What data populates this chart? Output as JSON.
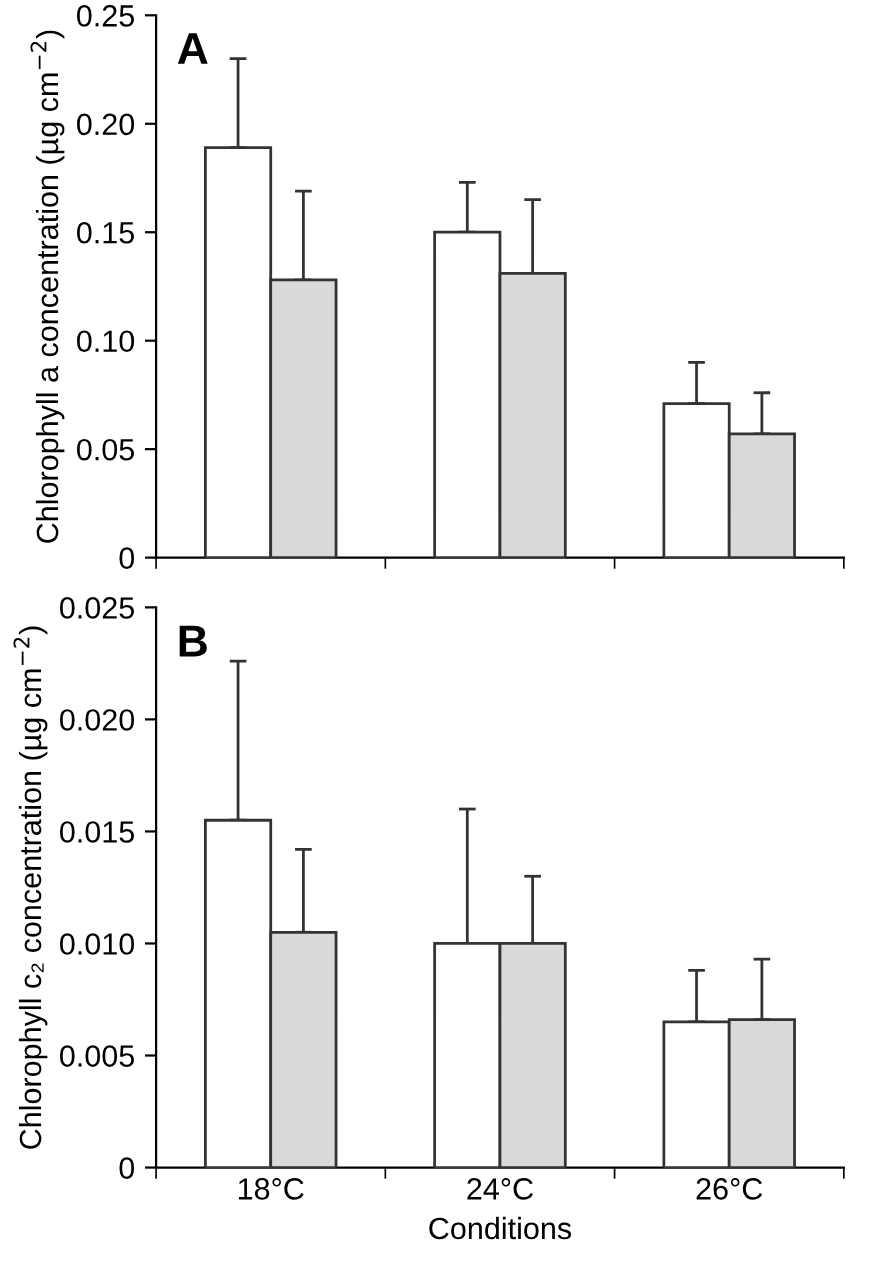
{
  "chart_data": [
    {
      "type": "bar",
      "title": "A",
      "ylabel": "Chlorophyll a concentration (µg cm$^{−2}$)",
      "categories": [
        null,
        null,
        null
      ],
      "tick_labels": "y",
      "ylim": [
        0,
        0.25
      ],
      "yticks": [
        {
          "value": 0,
          "label": "0"
        },
        {
          "value": 0.05,
          "label": "0.05"
        },
        {
          "value": 0.1,
          "label": "0.10"
        },
        {
          "value": 0.15,
          "label": "0.15"
        },
        {
          "value": 0.2,
          "label": "0.20"
        },
        {
          "value": 0.25,
          "label": "0.25"
        }
      ],
      "grid": false,
      "legend": false,
      "series": [
        {
          "color": "#ffffff",
          "values": [
            0.189,
            0.15,
            0.071
          ],
          "errors": [
            [
              0.189,
              0.23
            ],
            [
              0.15,
              0.173
            ],
            [
              0.071,
              0.09
            ]
          ]
        },
        {
          "color": "#d9d9d9",
          "values": [
            0.128,
            0.131,
            0.057
          ],
          "errors": [
            [
              0.128,
              0.169
            ],
            [
              0.131,
              0.165
            ],
            [
              0.057,
              0.076
            ]
          ]
        }
      ]
    },
    {
      "type": "bar",
      "title": "B",
      "xlabel": "Conditions",
      "ylabel": "Chlorophyll c₂ concentration (µg cm$^{−2}$)",
      "categories": [
        "18°C",
        "24°C",
        "26°C"
      ],
      "ylim": [
        0,
        0.025
      ],
      "yticks": [
        {
          "value": 0,
          "label": "0"
        },
        {
          "value": 0.005,
          "label": "0.005"
        },
        {
          "value": 0.01,
          "label": "0.010"
        },
        {
          "value": 0.015,
          "label": "0.015"
        },
        {
          "value": 0.02,
          "label": "0.020"
        },
        {
          "value": 0.025,
          "label": "0.025"
        }
      ],
      "grid": false,
      "legend": false,
      "series": [
        {
          "color": "#ffffff",
          "values": [
            0.0155,
            0.01,
            0.0065
          ],
          "errors": [
            [
              0.0155,
              0.0226
            ],
            [
              0.01,
              0.016
            ],
            [
              0.0065,
              0.0088
            ]
          ]
        },
        {
          "color": "#d9d9d9",
          "values": [
            0.0105,
            0.01,
            0.0066
          ],
          "errors": [
            [
              0.0105,
              0.0142
            ],
            [
              0.01,
              0.013
            ],
            [
              0.0066,
              0.0093
            ]
          ]
        }
      ]
    }
  ]
}
